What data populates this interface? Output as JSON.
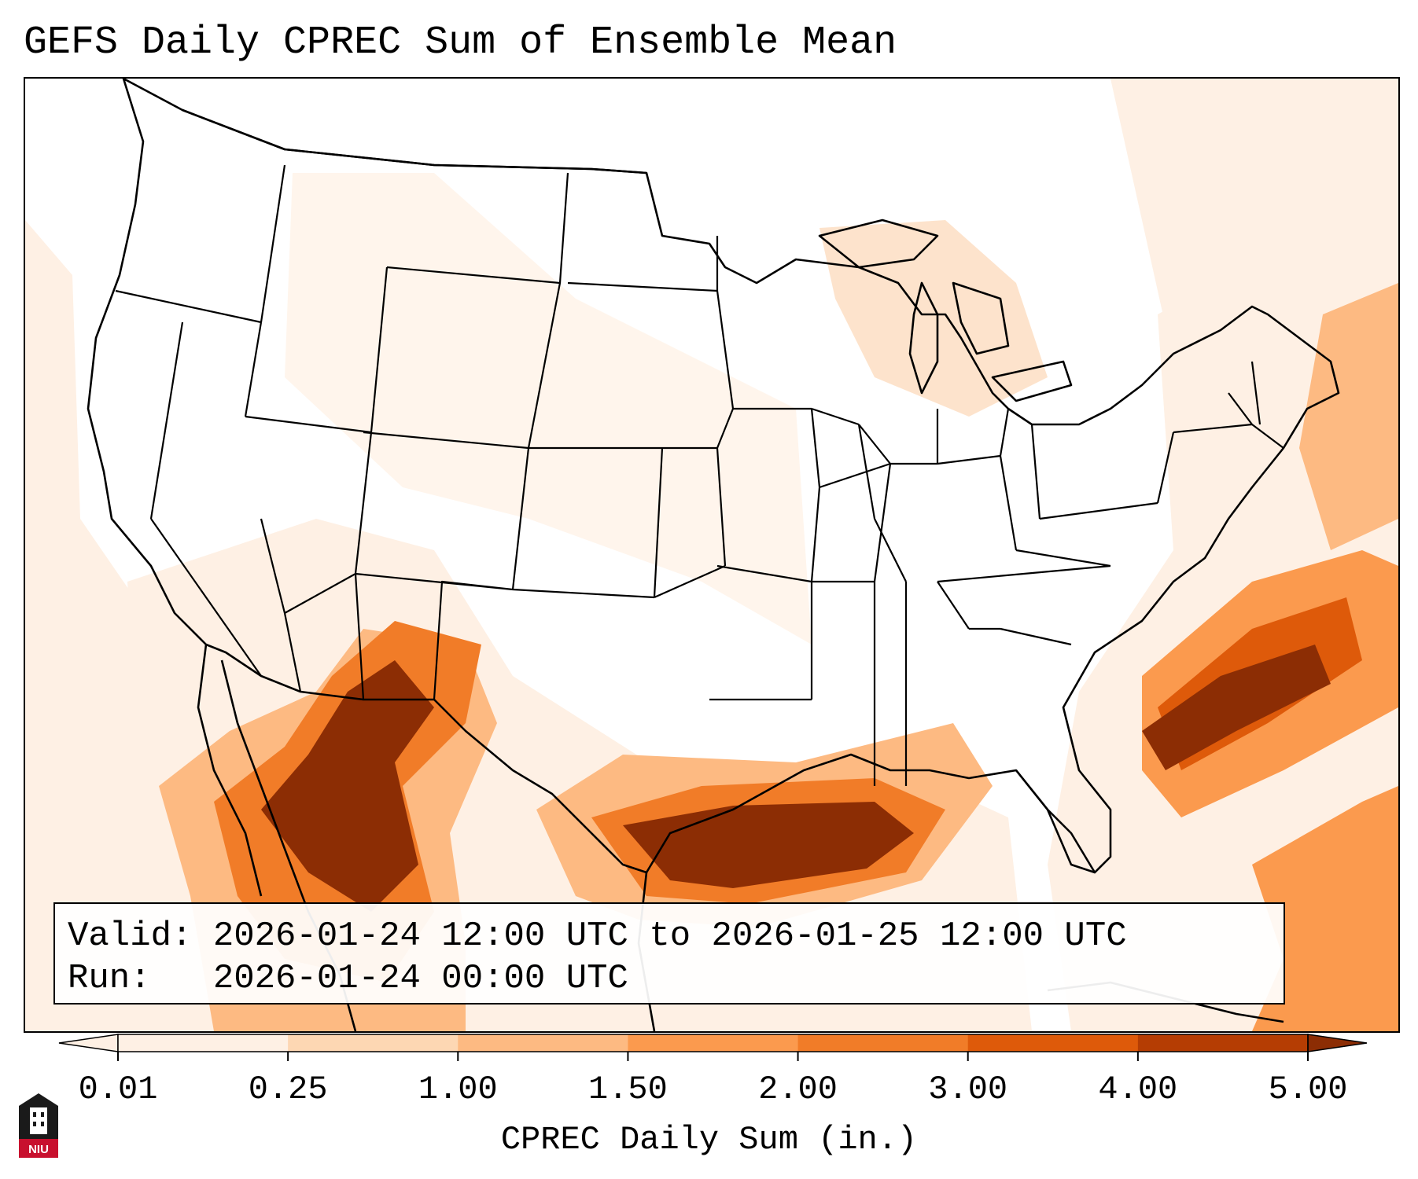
{
  "title": "GEFS Daily CPREC Sum of Ensemble Mean",
  "info": {
    "valid_label": "Valid:",
    "valid_value": "2026-01-24 12:00 UTC to 2026-01-25 12:00 UTC",
    "run_label": "Run:",
    "run_value": "2026-01-24 00:00 UTC"
  },
  "colorbar": {
    "label": "CPREC Daily Sum (in.)",
    "ticks": [
      "0.01",
      "0.25",
      "1.00",
      "1.50",
      "2.00",
      "3.00",
      "4.00",
      "5.00"
    ],
    "colors": [
      "#fef0e4",
      "#fdd7b3",
      "#fdba82",
      "#fb9a4e",
      "#f17c28",
      "#de5a0a",
      "#b53d03",
      "#8c2d04"
    ],
    "extend": "both"
  },
  "map": {
    "region": "Contiguous United States",
    "variable": "convective precipitation daily sum",
    "legend_colors": {
      "low": "#fef0e4",
      "high": "#8c2d04"
    }
  },
  "logo": {
    "text": "NIU",
    "name": "niu-logo"
  }
}
